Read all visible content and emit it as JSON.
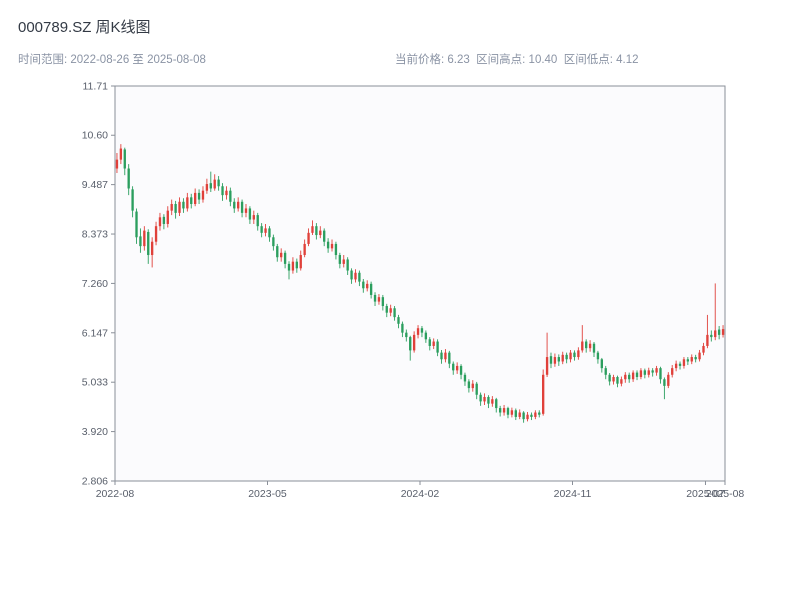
{
  "header": {
    "title": "000789.SZ 周K线图",
    "subtitle_left": "时间范围: 2022-08-26 至 2025-08-08",
    "subtitle_right": "当前价格: 6.23  区间高点: 10.40  区间低点: 4.12"
  },
  "chart_data": {
    "type": "candlestick",
    "title": "000789.SZ 周K线图",
    "symbol": "000789.SZ",
    "period": "weekly",
    "date_range": {
      "start": "2022-08-26",
      "end": "2025-08-08"
    },
    "current_price": 6.23,
    "range_high": 10.4,
    "range_low": 4.12,
    "ylim": [
      2.806,
      11.71
    ],
    "y_ticks": [
      "11.71",
      "10.60",
      "9.487",
      "8.373",
      "7.260",
      "6.147",
      "5.033",
      "3.920",
      "2.806"
    ],
    "x_ticks": [
      {
        "label": "2022-08",
        "pos": 0.0
      },
      {
        "label": "2023-05",
        "pos": 0.25
      },
      {
        "label": "2024-02",
        "pos": 0.5
      },
      {
        "label": "2024-11",
        "pos": 0.75
      },
      {
        "label": "2025-07",
        "pos": 0.968
      },
      {
        "label": "2025-08",
        "pos": 1.0
      }
    ],
    "legend": "none",
    "grid": "off",
    "up_color": "#e0403a",
    "down_color": "#2b9e5e",
    "plot_bg": "#fbfbfd",
    "axis_color": "#8a8f98",
    "tick_label_color": "#595f6b",
    "candles": [
      [
        9.85,
        10.2,
        9.75,
        10.05
      ],
      [
        10.05,
        10.4,
        9.95,
        10.3
      ],
      [
        10.28,
        10.32,
        9.7,
        9.85
      ],
      [
        9.85,
        9.95,
        9.25,
        9.4
      ],
      [
        9.38,
        9.45,
        8.75,
        8.9
      ],
      [
        8.88,
        8.95,
        8.15,
        8.3
      ],
      [
        8.32,
        8.5,
        7.95,
        8.1
      ],
      [
        8.1,
        8.55,
        8.0,
        8.45
      ],
      [
        8.42,
        8.48,
        7.7,
        7.9
      ],
      [
        7.9,
        8.3,
        7.62,
        8.2
      ],
      [
        8.2,
        8.65,
        8.12,
        8.55
      ],
      [
        8.55,
        8.85,
        8.45,
        8.75
      ],
      [
        8.76,
        8.82,
        8.48,
        8.6
      ],
      [
        8.6,
        9.0,
        8.52,
        8.9
      ],
      [
        8.9,
        9.15,
        8.8,
        9.05
      ],
      [
        9.05,
        9.12,
        8.72,
        8.85
      ],
      [
        8.85,
        9.2,
        8.78,
        9.1
      ],
      [
        9.1,
        9.18,
        8.85,
        8.95
      ],
      [
        8.95,
        9.3,
        8.88,
        9.2
      ],
      [
        9.2,
        9.28,
        8.95,
        9.05
      ],
      [
        9.05,
        9.4,
        9.0,
        9.3
      ],
      [
        9.3,
        9.38,
        9.05,
        9.15
      ],
      [
        9.15,
        9.45,
        9.08,
        9.35
      ],
      [
        9.35,
        9.62,
        9.28,
        9.5
      ],
      [
        9.52,
        9.78,
        9.32,
        9.4
      ],
      [
        9.4,
        9.72,
        9.35,
        9.6
      ],
      [
        9.6,
        9.68,
        9.35,
        9.45
      ],
      [
        9.45,
        9.52,
        9.12,
        9.25
      ],
      [
        9.25,
        9.45,
        9.15,
        9.35
      ],
      [
        9.35,
        9.42,
        9.0,
        9.1
      ],
      [
        9.1,
        9.18,
        8.85,
        8.95
      ],
      [
        8.95,
        9.2,
        8.88,
        9.1
      ],
      [
        9.1,
        9.15,
        8.75,
        8.85
      ],
      [
        8.85,
        9.05,
        8.75,
        8.95
      ],
      [
        8.95,
        9.0,
        8.6,
        8.7
      ],
      [
        8.7,
        8.9,
        8.6,
        8.8
      ],
      [
        8.8,
        8.85,
        8.45,
        8.55
      ],
      [
        8.55,
        8.62,
        8.3,
        8.4
      ],
      [
        8.4,
        8.6,
        8.32,
        8.5
      ],
      [
        8.5,
        8.55,
        8.2,
        8.3
      ],
      [
        8.3,
        8.36,
        8.0,
        8.1
      ],
      [
        8.1,
        8.15,
        7.75,
        7.85
      ],
      [
        7.85,
        8.05,
        7.75,
        7.95
      ],
      [
        7.95,
        8.0,
        7.6,
        7.7
      ],
      [
        7.7,
        7.76,
        7.35,
        7.55
      ],
      [
        7.55,
        7.85,
        7.48,
        7.75
      ],
      [
        7.75,
        7.82,
        7.5,
        7.6
      ],
      [
        7.6,
        8.0,
        7.55,
        7.9
      ],
      [
        7.9,
        8.25,
        7.85,
        8.15
      ],
      [
        8.15,
        8.5,
        8.1,
        8.4
      ],
      [
        8.4,
        8.68,
        8.35,
        8.55
      ],
      [
        8.55,
        8.62,
        8.25,
        8.35
      ],
      [
        8.35,
        8.55,
        8.28,
        8.45
      ],
      [
        8.45,
        8.5,
        8.1,
        8.2
      ],
      [
        8.2,
        8.28,
        7.95,
        8.05
      ],
      [
        8.05,
        8.25,
        7.98,
        8.15
      ],
      [
        8.15,
        8.2,
        7.8,
        7.9
      ],
      [
        7.9,
        7.95,
        7.6,
        7.7
      ],
      [
        7.7,
        7.9,
        7.62,
        7.8
      ],
      [
        7.8,
        7.85,
        7.45,
        7.55
      ],
      [
        7.55,
        7.6,
        7.25,
        7.35
      ],
      [
        7.35,
        7.58,
        7.28,
        7.5
      ],
      [
        7.5,
        7.55,
        7.2,
        7.3
      ],
      [
        7.3,
        7.36,
        7.05,
        7.15
      ],
      [
        7.15,
        7.33,
        7.08,
        7.25
      ],
      [
        7.25,
        7.3,
        6.92,
        7.0
      ],
      [
        7.0,
        7.06,
        6.75,
        6.85
      ],
      [
        6.85,
        7.02,
        6.78,
        6.95
      ],
      [
        6.95,
        7.0,
        6.65,
        6.75
      ],
      [
        6.75,
        6.8,
        6.5,
        6.6
      ],
      [
        6.6,
        6.78,
        6.52,
        6.7
      ],
      [
        6.7,
        6.75,
        6.42,
        6.5
      ],
      [
        6.5,
        6.55,
        6.25,
        6.35
      ],
      [
        6.35,
        6.4,
        6.05,
        6.15
      ],
      [
        6.15,
        6.22,
        5.95,
        6.05
      ],
      [
        6.05,
        6.08,
        5.52,
        5.75
      ],
      [
        5.75,
        6.18,
        5.7,
        6.1
      ],
      [
        6.1,
        6.32,
        6.02,
        6.25
      ],
      [
        6.25,
        6.3,
        6.05,
        6.15
      ],
      [
        6.15,
        6.2,
        5.92,
        6.0
      ],
      [
        6.0,
        6.05,
        5.75,
        5.85
      ],
      [
        5.85,
        6.02,
        5.78,
        5.95
      ],
      [
        5.95,
        6.0,
        5.62,
        5.7
      ],
      [
        5.7,
        5.76,
        5.45,
        5.55
      ],
      [
        5.55,
        5.78,
        5.48,
        5.7
      ],
      [
        5.7,
        5.74,
        5.35,
        5.45
      ],
      [
        5.45,
        5.5,
        5.2,
        5.3
      ],
      [
        5.3,
        5.48,
        5.22,
        5.4
      ],
      [
        5.4,
        5.44,
        5.1,
        5.2
      ],
      [
        5.2,
        5.25,
        4.95,
        5.05
      ],
      [
        5.05,
        5.1,
        4.8,
        4.9
      ],
      [
        4.9,
        5.08,
        4.82,
        5.0
      ],
      [
        5.0,
        5.04,
        4.65,
        4.75
      ],
      [
        4.75,
        4.8,
        4.5,
        4.6
      ],
      [
        4.6,
        4.78,
        4.52,
        4.7
      ],
      [
        4.7,
        4.74,
        4.45,
        4.55
      ],
      [
        4.55,
        4.72,
        4.48,
        4.65
      ],
      [
        4.65,
        4.68,
        4.35,
        4.45
      ],
      [
        4.45,
        4.5,
        4.26,
        4.35
      ],
      [
        4.35,
        4.52,
        4.28,
        4.45
      ],
      [
        4.45,
        4.48,
        4.22,
        4.3
      ],
      [
        4.3,
        4.46,
        4.24,
        4.4
      ],
      [
        4.4,
        4.44,
        4.18,
        4.25
      ],
      [
        4.25,
        4.42,
        4.2,
        4.35
      ],
      [
        4.35,
        4.38,
        4.12,
        4.2
      ],
      [
        4.2,
        4.36,
        4.15,
        4.3
      ],
      [
        4.3,
        4.35,
        4.18,
        4.25
      ],
      [
        4.25,
        4.4,
        4.2,
        4.35
      ],
      [
        4.35,
        4.4,
        4.24,
        4.3
      ],
      [
        4.32,
        5.32,
        4.28,
        5.2
      ],
      [
        5.2,
        6.15,
        5.15,
        5.6
      ],
      [
        5.62,
        5.7,
        5.35,
        5.45
      ],
      [
        5.45,
        5.68,
        5.38,
        5.6
      ],
      [
        5.6,
        5.66,
        5.4,
        5.5
      ],
      [
        5.5,
        5.72,
        5.44,
        5.65
      ],
      [
        5.65,
        5.7,
        5.46,
        5.55
      ],
      [
        5.55,
        5.76,
        5.48,
        5.7
      ],
      [
        5.7,
        5.75,
        5.52,
        5.6
      ],
      [
        5.6,
        5.82,
        5.54,
        5.75
      ],
      [
        5.75,
        6.32,
        5.7,
        5.95
      ],
      [
        5.95,
        6.0,
        5.7,
        5.8
      ],
      [
        5.8,
        5.98,
        5.72,
        5.9
      ],
      [
        5.9,
        5.94,
        5.6,
        5.7
      ],
      [
        5.7,
        5.74,
        5.45,
        5.55
      ],
      [
        5.55,
        5.58,
        5.25,
        5.35
      ],
      [
        5.35,
        5.4,
        5.1,
        5.2
      ],
      [
        5.2,
        5.24,
        4.96,
        5.05
      ],
      [
        5.05,
        5.2,
        4.98,
        5.15
      ],
      [
        5.15,
        5.18,
        4.92,
        5.0
      ],
      [
        5.0,
        5.16,
        4.94,
        5.1
      ],
      [
        5.1,
        5.26,
        5.02,
        5.2
      ],
      [
        5.2,
        5.25,
        5.02,
        5.1
      ],
      [
        5.1,
        5.3,
        5.04,
        5.25
      ],
      [
        5.25,
        5.3,
        5.08,
        5.15
      ],
      [
        5.15,
        5.35,
        5.1,
        5.3
      ],
      [
        5.3,
        5.34,
        5.12,
        5.2
      ],
      [
        5.2,
        5.36,
        5.14,
        5.3
      ],
      [
        5.3,
        5.35,
        5.16,
        5.25
      ],
      [
        5.25,
        5.4,
        5.18,
        5.35
      ],
      [
        5.35,
        5.38,
        5.0,
        5.1
      ],
      [
        5.1,
        5.14,
        4.65,
        4.95
      ],
      [
        4.95,
        5.26,
        4.9,
        5.2
      ],
      [
        5.2,
        5.42,
        5.14,
        5.35
      ],
      [
        5.35,
        5.52,
        5.28,
        5.45
      ],
      [
        5.45,
        5.5,
        5.32,
        5.4
      ],
      [
        5.4,
        5.6,
        5.34,
        5.55
      ],
      [
        5.55,
        5.6,
        5.42,
        5.5
      ],
      [
        5.5,
        5.66,
        5.44,
        5.6
      ],
      [
        5.6,
        5.65,
        5.48,
        5.55
      ],
      [
        5.55,
        5.76,
        5.5,
        5.7
      ],
      [
        5.7,
        5.92,
        5.64,
        5.85
      ],
      [
        5.85,
        6.55,
        5.8,
        6.1
      ],
      [
        6.1,
        6.2,
        5.95,
        6.05
      ],
      [
        6.05,
        7.26,
        5.98,
        6.2
      ],
      [
        6.22,
        6.3,
        6.0,
        6.1
      ],
      [
        6.1,
        6.32,
        6.04,
        6.23
      ]
    ]
  }
}
